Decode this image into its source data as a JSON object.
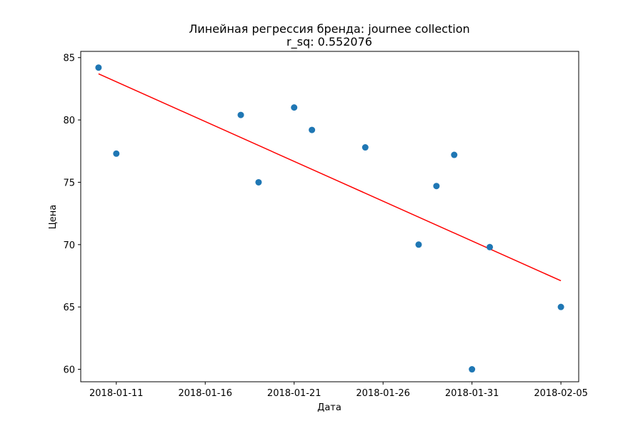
{
  "chart_data": {
    "type": "scatter",
    "title": "Линейная регрессия бренда: journee collection",
    "subtitle": "r_sq: 0.552076",
    "xlabel": "Дата",
    "ylabel": "Цена",
    "xlim": [
      "2018-01-09",
      "2018-02-06"
    ],
    "ylim": [
      59,
      85.5
    ],
    "x_ticks": [
      {
        "date": "2018-01-11",
        "label": "2018-01-11"
      },
      {
        "date": "2018-01-16",
        "label": "2018-01-16"
      },
      {
        "date": "2018-01-21",
        "label": "2018-01-21"
      },
      {
        "date": "2018-01-26",
        "label": "2018-01-26"
      },
      {
        "date": "2018-01-31",
        "label": "2018-01-31"
      },
      {
        "date": "2018-02-05",
        "label": "2018-02-05"
      }
    ],
    "y_ticks": [
      60,
      65,
      70,
      75,
      80,
      85
    ],
    "grid": false,
    "points": [
      {
        "x": "2018-01-10",
        "y": 84.2
      },
      {
        "x": "2018-01-11",
        "y": 77.3
      },
      {
        "x": "2018-01-18",
        "y": 80.4
      },
      {
        "x": "2018-01-19",
        "y": 75.0
      },
      {
        "x": "2018-01-21",
        "y": 81.0
      },
      {
        "x": "2018-01-22",
        "y": 79.2
      },
      {
        "x": "2018-01-25",
        "y": 77.8
      },
      {
        "x": "2018-01-28",
        "y": 70.0
      },
      {
        "x": "2018-01-29",
        "y": 74.7
      },
      {
        "x": "2018-01-30",
        "y": 77.2
      },
      {
        "x": "2018-01-31",
        "y": 60.0
      },
      {
        "x": "2018-02-01",
        "y": 69.8
      },
      {
        "x": "2018-02-05",
        "y": 65.0
      }
    ],
    "regression_line": [
      {
        "x": "2018-01-10",
        "y": 83.7
      },
      {
        "x": "2018-02-05",
        "y": 67.1
      }
    ],
    "colors": {
      "points": "#1f77b4",
      "regression": "#ff0000"
    }
  }
}
